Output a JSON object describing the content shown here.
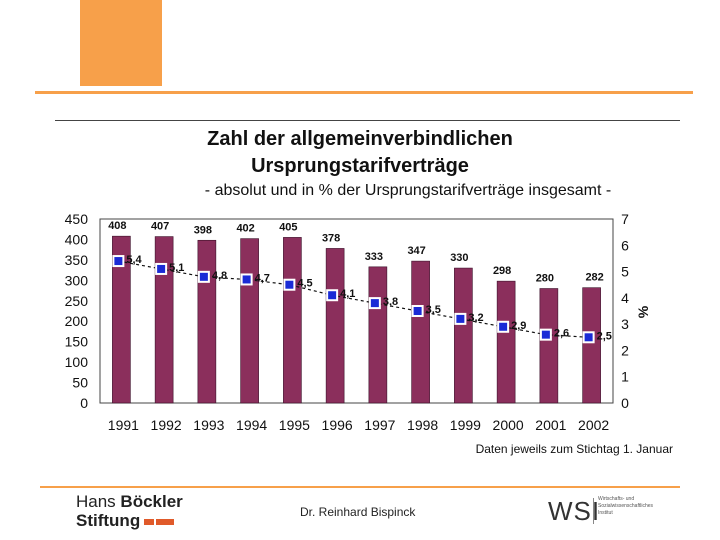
{
  "chart_data": {
    "type": "bar",
    "title_line1": "Zahl der allgemeinverbindlichen",
    "title_line2": "Ursprungstarifverträge",
    "subtitle": "- absolut und in % der Ursprungstarifverträge insgesamt -",
    "categories": [
      "1991",
      "1992",
      "1993",
      "1994",
      "1995",
      "1996",
      "1997",
      "1998",
      "1999",
      "2000",
      "2001",
      "2002"
    ],
    "series": [
      {
        "name": "absolut",
        "axis": "left",
        "values": [
          408,
          407,
          398,
          402,
          405,
          378,
          333,
          347,
          330,
          298,
          280,
          282
        ],
        "color": "#8b2f5c"
      },
      {
        "name": "in %",
        "axis": "right",
        "values": [
          5.4,
          5.1,
          4.8,
          4.7,
          4.5,
          4.1,
          3.8,
          3.5,
          3.2,
          2.9,
          2.6,
          2.5
        ],
        "labels": [
          "5,4",
          "5,1",
          "4,8",
          "4,7",
          "4,5",
          "4,1",
          "3,8",
          "3,5",
          "3,2",
          "2,9",
          "2,6",
          "2,5"
        ],
        "color": "#1a2bd6"
      }
    ],
    "y_left": {
      "ticks": [
        "0",
        "50",
        "100",
        "150",
        "200",
        "250",
        "300",
        "350",
        "400",
        "450"
      ],
      "ylim": [
        0,
        450
      ]
    },
    "y_right": {
      "ticks": [
        "0",
        "1",
        "2",
        "3",
        "4",
        "5",
        "6",
        "7"
      ],
      "ylim": [
        0,
        7
      ],
      "label": "%"
    },
    "note": "Daten jeweils zum Stichtag 1. Januar"
  },
  "footer": {
    "author": "Dr. Reinhard Bispinck",
    "logo_line1_a": "Hans ",
    "logo_line1_b": "Böckler",
    "logo_line2": "Stiftung",
    "wsi": "WSI",
    "wsi_small": "Wirtschafts- und Sozialwissenschaftliches Institut"
  }
}
